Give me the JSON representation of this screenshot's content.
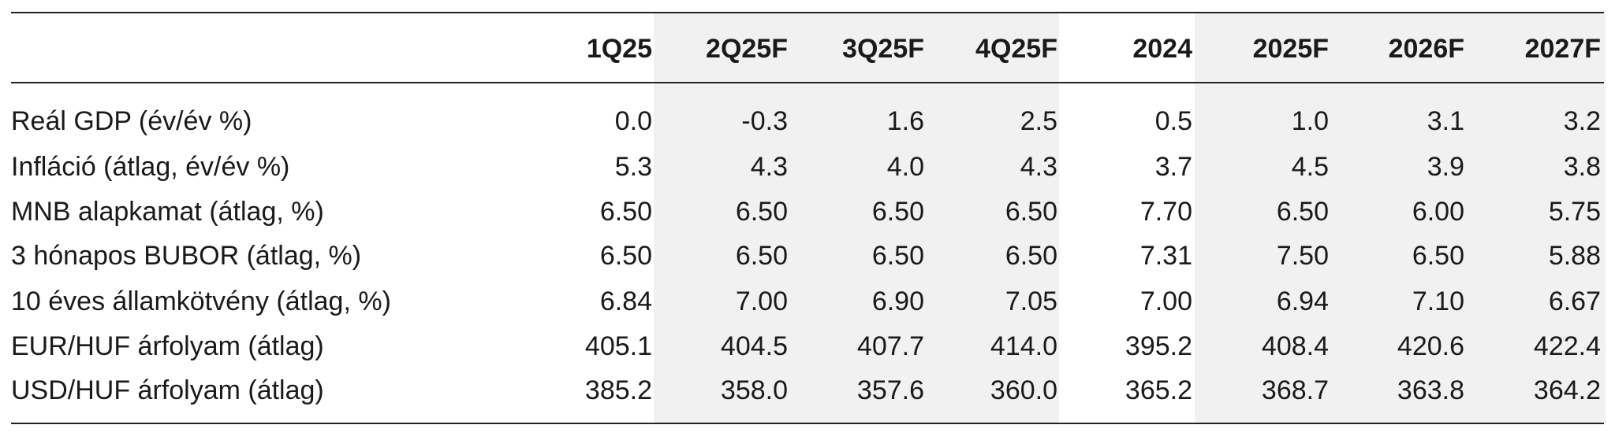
{
  "table": {
    "columns": [
      "1Q25",
      "2Q25F",
      "3Q25F",
      "4Q25F",
      "2024",
      "2025F",
      "2026F",
      "2027F"
    ],
    "rows": [
      {
        "label": "Reál GDP (év/év %)",
        "values": [
          "0.0",
          "-0.3",
          "1.6",
          "2.5",
          "0.5",
          "1.0",
          "3.1",
          "3.2"
        ]
      },
      {
        "label": "Infláció (átlag, év/év %)",
        "values": [
          "5.3",
          "4.3",
          "4.0",
          "4.3",
          "3.7",
          "4.5",
          "3.9",
          "3.8"
        ]
      },
      {
        "label": "MNB alapkamat (átlag, %)",
        "values": [
          "6.50",
          "6.50",
          "6.50",
          "6.50",
          "7.70",
          "6.50",
          "6.00",
          "5.75"
        ]
      },
      {
        "label": "3 hónapos BUBOR (átlag, %)",
        "values": [
          "6.50",
          "6.50",
          "6.50",
          "6.50",
          "7.31",
          "7.50",
          "6.50",
          "5.88"
        ]
      },
      {
        "label": "10 éves államkötvény (átlag, %)",
        "values": [
          "6.84",
          "7.00",
          "6.90",
          "7.05",
          "7.00",
          "6.94",
          "7.10",
          "6.67"
        ]
      },
      {
        "label": "EUR/HUF árfolyam (átlag)",
        "values": [
          "405.1",
          "404.5",
          "407.7",
          "414.0",
          "395.2",
          "408.4",
          "420.6",
          "422.4"
        ]
      },
      {
        "label": "USD/HUF árfolyam (átlag)",
        "values": [
          "385.2",
          "358.0",
          "357.6",
          "360.0",
          "365.2",
          "368.7",
          "363.8",
          "364.2"
        ]
      }
    ]
  }
}
